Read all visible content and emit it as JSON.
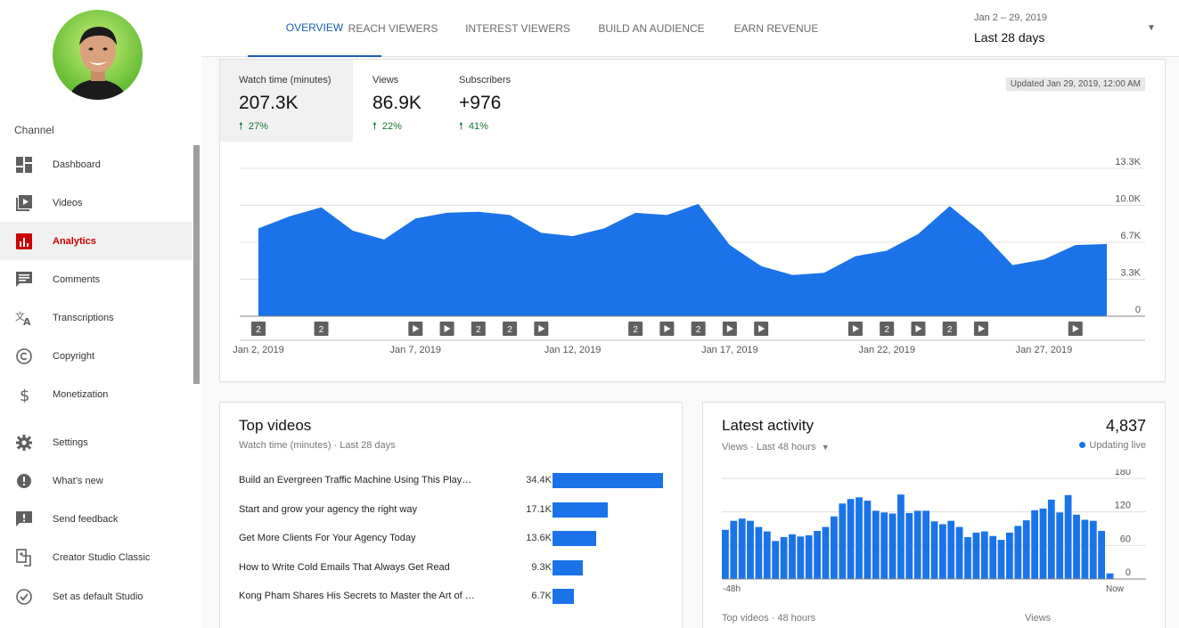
{
  "sidebar": {
    "channel_label": "Channel",
    "items": [
      {
        "label": "Dashboard",
        "icon": "dashboard-icon"
      },
      {
        "label": "Videos",
        "icon": "videos-icon"
      },
      {
        "label": "Analytics",
        "icon": "analytics-icon",
        "active": true
      },
      {
        "label": "Comments",
        "icon": "comments-icon"
      },
      {
        "label": "Transcriptions",
        "icon": "translate-icon"
      },
      {
        "label": "Copyright",
        "icon": "copyright-icon"
      },
      {
        "label": "Monetization",
        "icon": "dollar-icon"
      }
    ],
    "bottom_items": [
      {
        "label": "Settings",
        "icon": "gear-icon"
      },
      {
        "label": "What’s new",
        "icon": "new-badge-icon"
      },
      {
        "label": "Send feedback",
        "icon": "feedback-icon"
      },
      {
        "label": "Creator Studio Classic",
        "icon": "classic-icon"
      },
      {
        "label": "Set as default Studio",
        "icon": "check-circle-icon"
      }
    ]
  },
  "tabs": [
    {
      "label": "OVERVIEW",
      "active": true
    },
    {
      "label": "REACH VIEWERS"
    },
    {
      "label": "INTEREST VIEWERS"
    },
    {
      "label": "BUILD AN AUDIENCE"
    },
    {
      "label": "EARN REVENUE"
    }
  ],
  "date_range": {
    "dates": "Jan 2 – 29, 2019",
    "label": "Last 28 days"
  },
  "overview": {
    "metrics": [
      {
        "label": "Watch time (minutes)",
        "value": "207.3K",
        "change": "27%",
        "selected": true
      },
      {
        "label": "Views",
        "value": "86.9K",
        "change": "22%"
      },
      {
        "label": "Subscribers",
        "value": "+976",
        "change": "41%"
      }
    ],
    "updated": "Updated Jan 29, 2019, 12:00 AM"
  },
  "chart_data": [
    {
      "type": "area",
      "title": "Watch time (minutes)",
      "x_tick_labels": [
        "Jan 2, 2019",
        "Jan 7, 2019",
        "Jan 12, 2019",
        "Jan 17, 2019",
        "Jan 22, 2019",
        "Jan 27, 2019"
      ],
      "y_tick_labels": [
        "0",
        "3.3K",
        "6.7K",
        "10.0K",
        "13.3K"
      ],
      "ylim": [
        0,
        13300
      ],
      "x": [
        "Jan 2",
        "Jan 3",
        "Jan 4",
        "Jan 5",
        "Jan 6",
        "Jan 7",
        "Jan 8",
        "Jan 9",
        "Jan 10",
        "Jan 11",
        "Jan 12",
        "Jan 13",
        "Jan 14",
        "Jan 15",
        "Jan 16",
        "Jan 17",
        "Jan 18",
        "Jan 19",
        "Jan 20",
        "Jan 21",
        "Jan 22",
        "Jan 23",
        "Jan 24",
        "Jan 25",
        "Jan 26",
        "Jan 27",
        "Jan 28",
        "Jan 29"
      ],
      "values": [
        7900,
        9000,
        9800,
        7700,
        6900,
        8800,
        9300,
        9400,
        9100,
        7500,
        7200,
        7900,
        9300,
        9100,
        10100,
        6400,
        4500,
        3700,
        3900,
        5400,
        5900,
        7400,
        9900,
        7600,
        4600,
        5100,
        6400,
        6500
      ],
      "markers": [
        {
          "x": "Jan 2",
          "kind": "2"
        },
        {
          "x": "Jan 4",
          "kind": "2"
        },
        {
          "x": "Jan 7",
          "kind": "play"
        },
        {
          "x": "Jan 8",
          "kind": "play"
        },
        {
          "x": "Jan 9",
          "kind": "2"
        },
        {
          "x": "Jan 10",
          "kind": "2"
        },
        {
          "x": "Jan 11",
          "kind": "play"
        },
        {
          "x": "Jan 14",
          "kind": "2"
        },
        {
          "x": "Jan 15",
          "kind": "play"
        },
        {
          "x": "Jan 16",
          "kind": "2"
        },
        {
          "x": "Jan 17",
          "kind": "play"
        },
        {
          "x": "Jan 18",
          "kind": "play"
        },
        {
          "x": "Jan 21",
          "kind": "play"
        },
        {
          "x": "Jan 22",
          "kind": "2"
        },
        {
          "x": "Jan 23",
          "kind": "play"
        },
        {
          "x": "Jan 24",
          "kind": "2"
        },
        {
          "x": "Jan 25",
          "kind": "play"
        },
        {
          "x": "Jan 28",
          "kind": "play"
        }
      ],
      "color": "#1a73e8"
    },
    {
      "type": "bar",
      "title": "Latest activity",
      "x_tick_labels": [
        "-48h",
        "Now"
      ],
      "y_tick_labels": [
        "0",
        "60",
        "120",
        "180"
      ],
      "ylim": [
        0,
        180
      ],
      "values": [
        88,
        104,
        108,
        104,
        93,
        85,
        68,
        75,
        80,
        76,
        78,
        86,
        93,
        112,
        135,
        143,
        146,
        140,
        122,
        119,
        117,
        151,
        118,
        122,
        122,
        103,
        98,
        104,
        93,
        75,
        83,
        85,
        77,
        70,
        83,
        95,
        105,
        123,
        126,
        142,
        119,
        150,
        115,
        106,
        104,
        86,
        10
      ],
      "color": "#1a73e8"
    }
  ],
  "top_videos": {
    "title": "Top videos",
    "subtitle": "Watch time (minutes) · Last 28 days",
    "items": [
      {
        "title": "Build an Evergreen Traffic Machine Using This Play…",
        "value_label": "34.4K",
        "value": 34.4
      },
      {
        "title": "Start and grow your agency the right way",
        "value_label": "17.1K",
        "value": 17.1
      },
      {
        "title": "Get More Clients For Your Agency Today",
        "value_label": "13.6K",
        "value": 13.6
      },
      {
        "title": "How to Write Cold Emails That Always Get Read",
        "value_label": "9.3K",
        "value": 9.3
      },
      {
        "title": "Kong Pham Shares His Secrets to Master the Art of …",
        "value_label": "6.7K",
        "value": 6.7
      }
    ]
  },
  "latest_activity": {
    "title": "Latest activity",
    "total": "4,837",
    "live_label": "Updating live",
    "period": "Views · Last 48 hours",
    "foot_left": "Top videos · 48 hours",
    "foot_right": "Views"
  },
  "colors": {
    "accent": "#1a73e8",
    "active_nav": "#cc0000",
    "positive": "#137333"
  }
}
